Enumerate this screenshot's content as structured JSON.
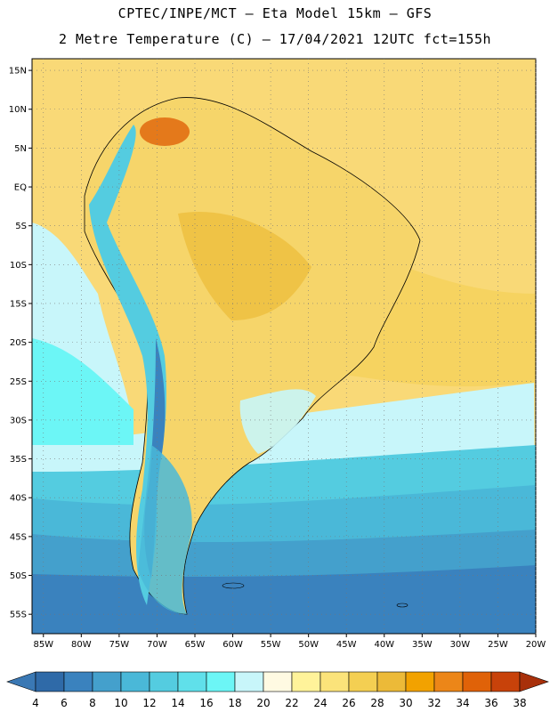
{
  "header": {
    "line1": "CPTEC/INPE/MCT –  Eta Model 15km – GFS",
    "line2": "2 Metre Temperature (C) – 17/04/2021 12UTC fct=155h"
  },
  "map": {
    "lat_range": [
      -57.5,
      16.5
    ],
    "lon_range": [
      -86.5,
      -20
    ],
    "lat_ticks": [
      "15N",
      "10N",
      "5N",
      "EQ",
      "5S",
      "10S",
      "15S",
      "20S",
      "25S",
      "30S",
      "35S",
      "40S",
      "45S",
      "50S",
      "55S"
    ],
    "lat_values": [
      15,
      10,
      5,
      0,
      -5,
      -10,
      -15,
      -20,
      -25,
      -30,
      -35,
      -40,
      -45,
      -50,
      -55
    ],
    "lon_ticks": [
      "85W",
      "80W",
      "75W",
      "70W",
      "65W",
      "60W",
      "55W",
      "50W",
      "45W",
      "40W",
      "35W",
      "30W",
      "25W",
      "20W"
    ],
    "lon_values": [
      -85,
      -80,
      -75,
      -70,
      -65,
      -60,
      -55,
      -50,
      -45,
      -40,
      -35,
      -30,
      -25,
      -20
    ],
    "grid": "dotted"
  },
  "colorbar": {
    "labels": [
      "4",
      "6",
      "8",
      "10",
      "12",
      "14",
      "16",
      "18",
      "20",
      "22",
      "24",
      "26",
      "28",
      "30",
      "32",
      "34",
      "36",
      "38"
    ],
    "low_color": "#3a78b4",
    "high_color": "#a8300a",
    "colors": [
      "#2f6aa8",
      "#3a82be",
      "#44a0cc",
      "#4ab8d8",
      "#54cce0",
      "#60e0ea",
      "#6cf6f6",
      "#c8f6fa",
      "#fffae2",
      "#fff39a",
      "#fbe37a",
      "#f4cf52",
      "#ecba38",
      "#f2a200",
      "#ec8618",
      "#e06208",
      "#c8420a",
      "#a8300a"
    ]
  }
}
